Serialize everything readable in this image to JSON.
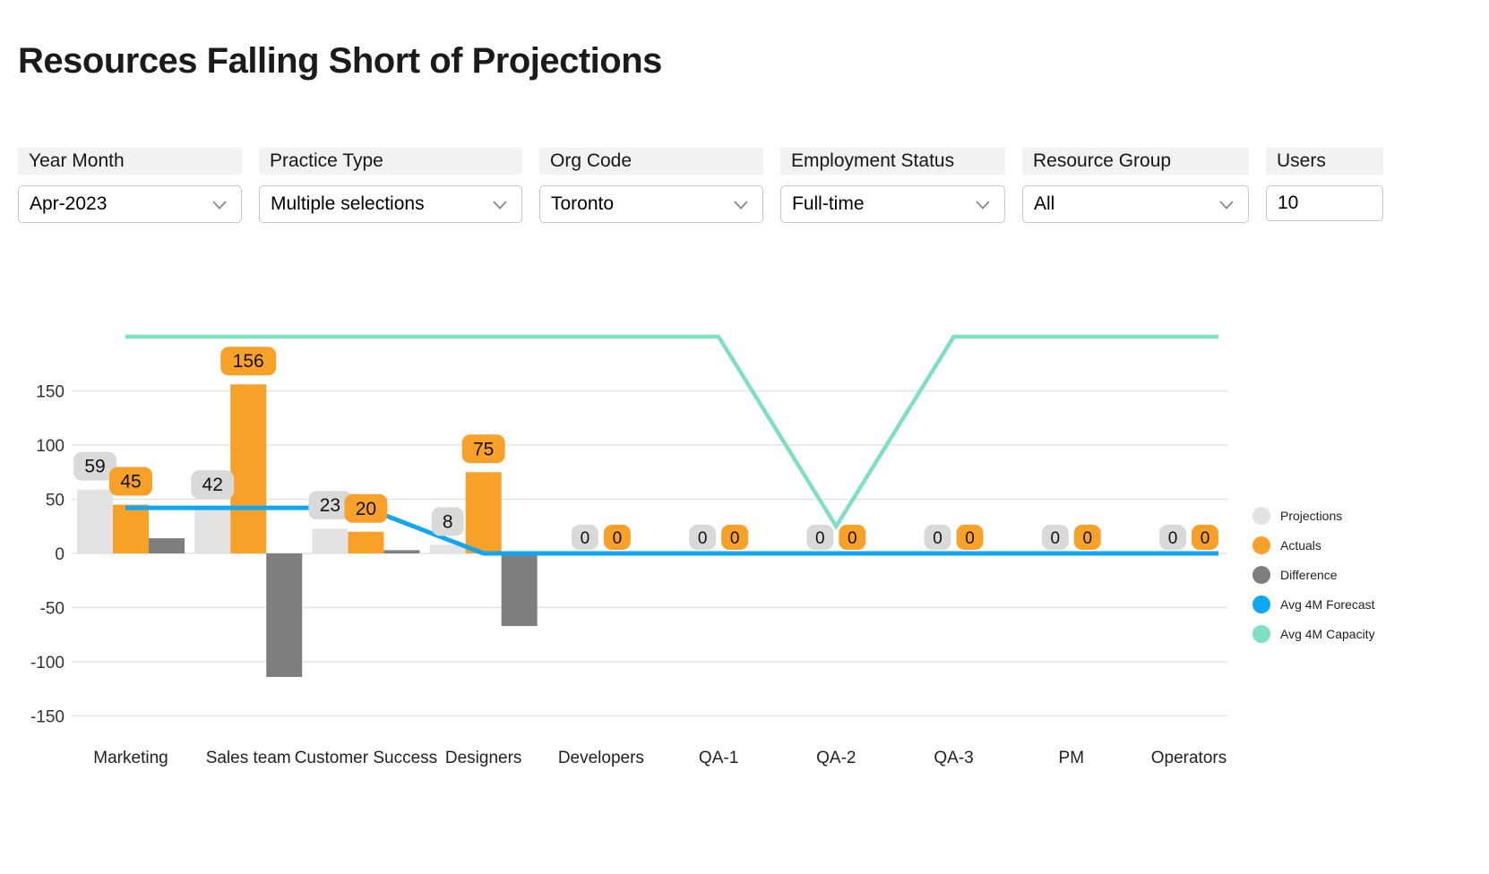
{
  "title": "Resources Falling Short of Projections",
  "filters": [
    {
      "label": "Year Month",
      "value": "Apr-2023",
      "type": "dropdown"
    },
    {
      "label": "Practice Type",
      "value": "Multiple selections",
      "type": "dropdown"
    },
    {
      "label": "Org Code",
      "value": "Toronto",
      "type": "dropdown"
    },
    {
      "label": "Employment Status",
      "value": "Full-time",
      "type": "dropdown"
    },
    {
      "label": "Resource Group",
      "value": "All",
      "type": "dropdown"
    },
    {
      "label": "Users",
      "value": "10",
      "type": "input"
    }
  ],
  "chart_data": {
    "type": "bar",
    "subtype": "combo-bar-line",
    "categories": [
      "Marketing",
      "Sales team",
      "Customer Success",
      "Designers",
      "Developers",
      "QA-1",
      "QA-2",
      "QA-3",
      "PM",
      "Operators"
    ],
    "series": [
      {
        "name": "Projections",
        "kind": "bar",
        "color": "#e3e3e3",
        "badge_color": "#d9d9d9",
        "values": [
          59,
          42,
          23,
          8,
          0,
          0,
          0,
          0,
          0,
          0
        ],
        "data_labels": true
      },
      {
        "name": "Actuals",
        "kind": "bar",
        "color": "#f8a128",
        "badge_color": "#f8a128",
        "values": [
          45,
          156,
          20,
          75,
          0,
          0,
          0,
          0,
          0,
          0
        ],
        "data_labels": true
      },
      {
        "name": "Difference",
        "kind": "bar",
        "color": "#7e7e7e",
        "values": [
          14,
          -114,
          3,
          -67,
          0,
          0,
          0,
          0,
          0,
          0
        ],
        "data_labels": false
      },
      {
        "name": "Avg 4M Forecast",
        "kind": "line",
        "color": "#0fa7f2",
        "values": [
          42,
          42,
          42,
          0,
          0,
          0,
          0,
          0,
          0,
          0
        ],
        "data_labels": false
      },
      {
        "name": "Avg 4M Capacity",
        "kind": "line",
        "color": "#7edfc3",
        "values": [
          200,
          200,
          200,
          200,
          200,
          200,
          25,
          200,
          200,
          200
        ],
        "data_labels": false
      }
    ],
    "yticks": [
      150,
      100,
      50,
      0,
      -50,
      -100,
      -150
    ],
    "ylim": [
      -165,
      215
    ],
    "xlabel": "",
    "ylabel": "",
    "grid": true,
    "legend_position": "right"
  }
}
